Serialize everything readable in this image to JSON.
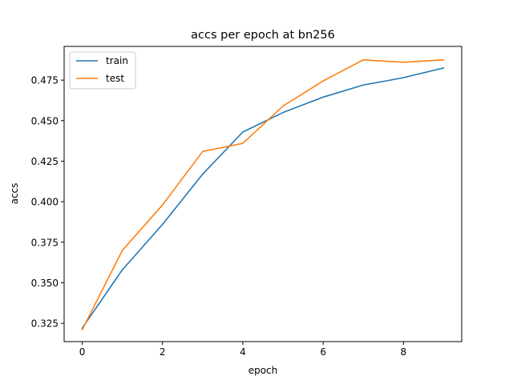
{
  "chart_data": {
    "type": "line",
    "title": "accs per epoch at bn256",
    "xlabel": "epoch",
    "ylabel": "accs",
    "x": [
      0,
      1,
      2,
      3,
      4,
      5,
      6,
      7,
      8,
      9
    ],
    "series": [
      {
        "name": "train",
        "color": "#1f77b4",
        "values": [
          0.322,
          0.358,
          0.386,
          0.417,
          0.443,
          0.455,
          0.4645,
          0.472,
          0.4765,
          0.4825
        ]
      },
      {
        "name": "test",
        "color": "#ff7f0e",
        "values": [
          0.321,
          0.37,
          0.398,
          0.431,
          0.436,
          0.459,
          0.4745,
          0.4875,
          0.486,
          0.4875
        ]
      }
    ],
    "xlim": [
      -0.45,
      9.45
    ],
    "ylim": [
      0.3137,
      0.4958
    ],
    "xticks": [
      0,
      2,
      4,
      6,
      8
    ],
    "xtick_labels": [
      "0",
      "2",
      "4",
      "6",
      "8"
    ],
    "yticks": [
      0.325,
      0.35,
      0.375,
      0.4,
      0.425,
      0.45,
      0.475
    ],
    "ytick_labels": [
      "0.325",
      "0.350",
      "0.375",
      "0.400",
      "0.425",
      "0.450",
      "0.475"
    ],
    "grid": false,
    "legend_position": "upper-left"
  }
}
